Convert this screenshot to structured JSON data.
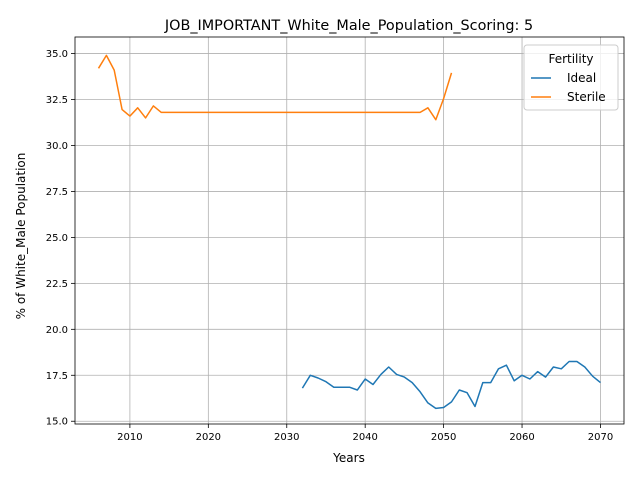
{
  "chart_data": {
    "type": "line",
    "title": "JOB_IMPORTANT_White_Male_Population_Scoring: 5",
    "xlabel": "Years",
    "ylabel": "% of White_Male Population",
    "xlim": [
      2003,
      2073
    ],
    "ylim": [
      14.85,
      35.9
    ],
    "xticks": [
      2010,
      2020,
      2030,
      2040,
      2050,
      2060,
      2070
    ],
    "yticks": [
      15.0,
      17.5,
      20.0,
      22.5,
      25.0,
      27.5,
      30.0,
      32.5,
      35.0
    ],
    "ytick_labels": [
      "15.0",
      "17.5",
      "20.0",
      "22.5",
      "25.0",
      "27.5",
      "30.0",
      "32.5",
      "35.0"
    ],
    "grid": true,
    "legend": {
      "title": "Fertility",
      "placement": "top-right"
    },
    "series": [
      {
        "name": "Ideal",
        "color": "#1f77b4",
        "x": [
          2032,
          2033,
          2034,
          2035,
          2036,
          2037,
          2038,
          2039,
          2040,
          2041,
          2042,
          2043,
          2044,
          2045,
          2046,
          2047,
          2048,
          2049,
          2050,
          2051,
          2052,
          2053,
          2054,
          2055,
          2056,
          2057,
          2058,
          2059,
          2060,
          2061,
          2062,
          2063,
          2064,
          2065,
          2066,
          2067,
          2068,
          2069,
          2070
        ],
        "y": [
          16.8,
          17.5,
          17.35,
          17.15,
          16.85,
          16.85,
          16.85,
          16.7,
          17.3,
          17.0,
          17.55,
          17.95,
          17.55,
          17.4,
          17.1,
          16.6,
          16.0,
          15.7,
          15.75,
          16.05,
          16.7,
          16.55,
          15.8,
          17.1,
          17.1,
          17.85,
          18.05,
          17.2,
          17.5,
          17.3,
          17.7,
          17.4,
          17.95,
          17.85,
          18.25,
          18.25,
          17.95,
          17.45,
          17.1
        ]
      },
      {
        "name": "Sterile",
        "color": "#ff7f0e",
        "x": [
          2006,
          2007,
          2008,
          2009,
          2010,
          2011,
          2012,
          2013,
          2014,
          2015,
          2016,
          2017,
          2018,
          2019,
          2020,
          2021,
          2022,
          2023,
          2024,
          2025,
          2026,
          2027,
          2028,
          2029,
          2030,
          2031,
          2032,
          2033,
          2034,
          2035,
          2036,
          2037,
          2038,
          2039,
          2040,
          2041,
          2042,
          2043,
          2044,
          2045,
          2046,
          2047,
          2048,
          2049,
          2050,
          2051
        ],
        "y": [
          34.2,
          34.9,
          34.1,
          31.95,
          31.6,
          32.05,
          31.5,
          32.15,
          31.8,
          31.8,
          31.8,
          31.8,
          31.8,
          31.8,
          31.8,
          31.8,
          31.8,
          31.8,
          31.8,
          31.8,
          31.8,
          31.8,
          31.8,
          31.8,
          31.8,
          31.8,
          31.8,
          31.8,
          31.8,
          31.8,
          31.8,
          31.8,
          31.8,
          31.8,
          31.8,
          31.8,
          31.8,
          31.8,
          31.8,
          31.8,
          31.8,
          31.8,
          32.05,
          31.4,
          32.55,
          33.95
        ]
      }
    ]
  }
}
